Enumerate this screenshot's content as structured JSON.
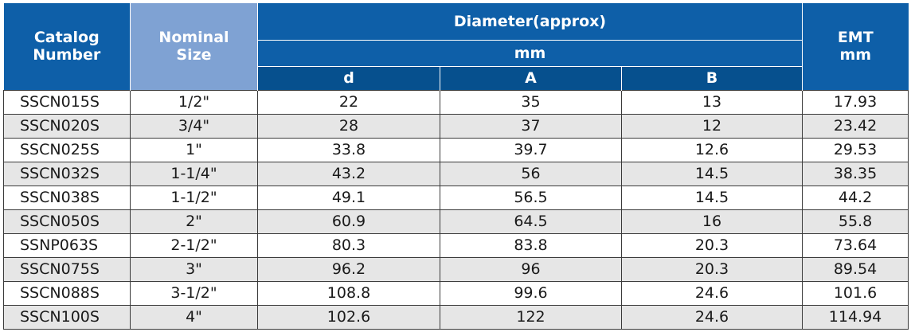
{
  "header": {
    "catalog_number": "Catalog\nNumber",
    "nominal_size": "Nominal\nSize",
    "diameter": "Diameter(approx)",
    "diameter_unit": "mm",
    "col_d": "d",
    "col_a": "A",
    "col_b": "B",
    "emt": "EMT\nmm"
  },
  "colors": {
    "header_blue": "#0e5fa8",
    "header_light_blue": "#7fa2d3",
    "header_dark_blue": "#06508e",
    "row_alt_gray": "#e6e6e6"
  },
  "rows": [
    {
      "catalog": "SSCN015S",
      "size": "1/2\"",
      "d": "22",
      "a": "35",
      "b": "13",
      "emt": "17.93"
    },
    {
      "catalog": "SSCN020S",
      "size": "3/4\"",
      "d": "28",
      "a": "37",
      "b": "12",
      "emt": "23.42"
    },
    {
      "catalog": "SSCN025S",
      "size": "1\"",
      "d": "33.8",
      "a": "39.7",
      "b": "12.6",
      "emt": "29.53"
    },
    {
      "catalog": "SSCN032S",
      "size": "1-1/4\"",
      "d": "43.2",
      "a": "56",
      "b": "14.5",
      "emt": "38.35"
    },
    {
      "catalog": "SSCN038S",
      "size": "1-1/2\"",
      "d": "49.1",
      "a": "56.5",
      "b": "14.5",
      "emt": "44.2"
    },
    {
      "catalog": "SSCN050S",
      "size": "2\"",
      "d": "60.9",
      "a": "64.5",
      "b": "16",
      "emt": "55.8"
    },
    {
      "catalog": "SSNP063S",
      "size": "2-1/2\"",
      "d": "80.3",
      "a": "83.8",
      "b": "20.3",
      "emt": "73.64"
    },
    {
      "catalog": "SSCN075S",
      "size": "3\"",
      "d": "96.2",
      "a": "96",
      "b": "20.3",
      "emt": "89.54"
    },
    {
      "catalog": "SSCN088S",
      "size": "3-1/2\"",
      "d": "108.8",
      "a": "99.6",
      "b": "24.6",
      "emt": "101.6"
    },
    {
      "catalog": "SSCN100S",
      "size": "4\"",
      "d": "102.6",
      "a": "122",
      "b": "24.6",
      "emt": "114.94"
    }
  ]
}
